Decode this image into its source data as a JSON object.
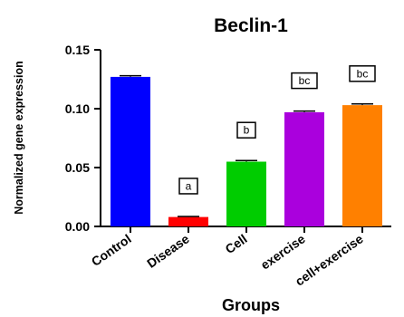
{
  "chart_data": {
    "type": "bar",
    "title": "Beclin-1",
    "xlabel": "Groups",
    "ylabel": "Normalized gene expression",
    "ylim": [
      0,
      0.15
    ],
    "yticks": [
      "0.00",
      "0.05",
      "0.10",
      "0.15"
    ],
    "categories": [
      "Control",
      "Disease",
      "Cell",
      "exercise",
      "cell+exercise"
    ],
    "values": [
      0.127,
      0.008,
      0.055,
      0.097,
      0.103
    ],
    "errors": [
      0.001,
      0.0005,
      0.001,
      0.001,
      0.001
    ],
    "colors": [
      "#0000ff",
      "#ff0000",
      "#00cc00",
      "#aa00dd",
      "#ff8000"
    ],
    "significance_labels": [
      "",
      "a",
      "b",
      "bc",
      "bc"
    ],
    "grid": false,
    "legend": "none"
  }
}
